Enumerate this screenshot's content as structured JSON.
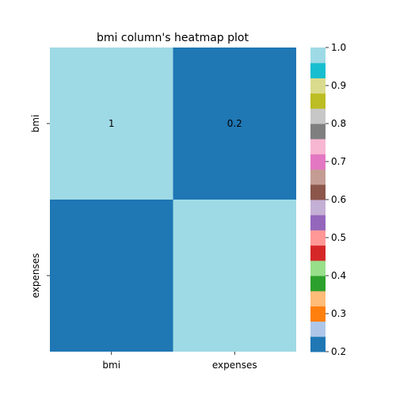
{
  "chart_data": {
    "type": "heatmap",
    "title": "bmi column's heatmap plot",
    "x_categories": [
      "bmi",
      "expenses"
    ],
    "y_categories": [
      "bmi",
      "expenses"
    ],
    "values": [
      [
        1.0,
        0.2
      ],
      [
        0.2,
        1.0
      ]
    ],
    "annotations": [
      [
        "1",
        "0.2"
      ],
      [
        "",
        ""
      ]
    ],
    "colorbar": {
      "range": [
        0.2,
        1.0
      ],
      "ticks": [
        "0.2",
        "0.3",
        "0.4",
        "0.5",
        "0.6",
        "0.7",
        "0.8",
        "0.9",
        "1.0"
      ],
      "colormap": "tab20",
      "colors": [
        "#1f77b4",
        "#aec7e8",
        "#ff7f0e",
        "#ffbb78",
        "#2ca02c",
        "#98df8a",
        "#d62728",
        "#ff9896",
        "#9467bd",
        "#c5b0d5",
        "#8c564b",
        "#c49c94",
        "#e377c2",
        "#f7b6d2",
        "#7f7f7f",
        "#c7c7c7",
        "#bcbd22",
        "#dbdb8d",
        "#17becf",
        "#9edae5"
      ]
    }
  }
}
